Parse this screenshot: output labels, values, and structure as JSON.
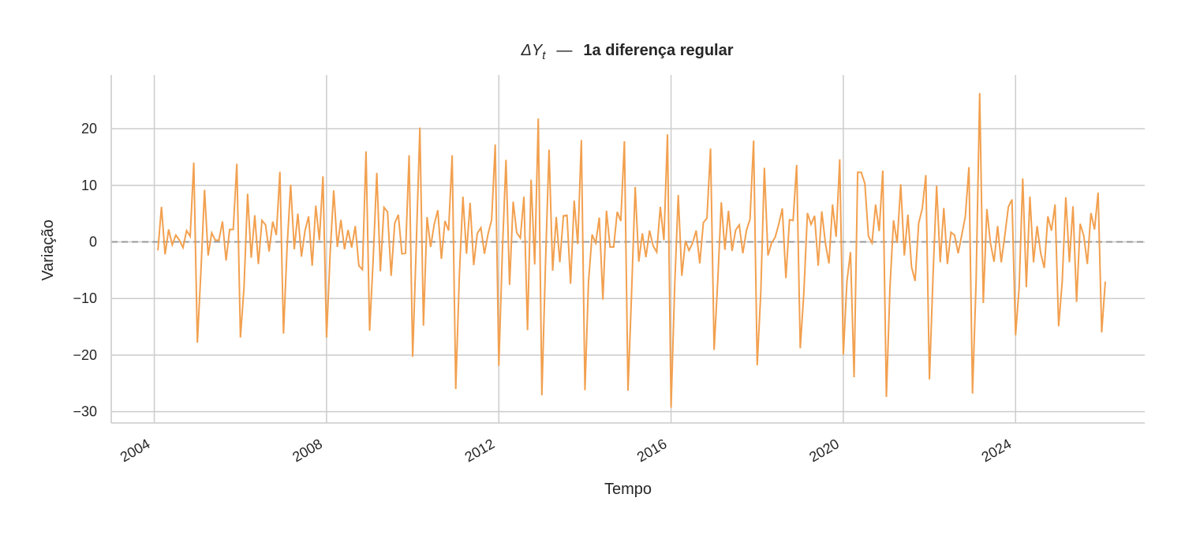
{
  "chart_data": {
    "type": "line",
    "title": {
      "symbol": "ΔY",
      "subscript": "t",
      "separator": "—",
      "text": "1a diferença regular"
    },
    "xlabel": "Tempo",
    "ylabel": "Variação",
    "x_ticks": [
      "2004",
      "2008",
      "2012",
      "2016",
      "2020",
      "2024"
    ],
    "y_ticks": [
      "−30",
      "−20",
      "−10",
      "0",
      "10",
      "20"
    ],
    "x_start": "2004-02",
    "x_end": "2026-02",
    "frequency": "monthly",
    "xlim": [
      "2003-01",
      "2027-01"
    ],
    "ylim": [
      -32,
      29.5
    ],
    "grid": true,
    "reference_line": 0,
    "series": [
      {
        "color": "#f2a04f",
        "values": [
          -1.5,
          6.2,
          -2.2,
          2.2,
          -0.5,
          1.2,
          0.3,
          -1.0,
          2.0,
          1.0,
          14.0,
          -17.8,
          -5.0,
          9.2,
          -2.4,
          1.6,
          0.3,
          0.3,
          3.6,
          -3.3,
          2.2,
          2.2,
          13.8,
          -16.9,
          -8.0,
          8.5,
          -2.8,
          4.7,
          -3.9,
          3.8,
          3.0,
          -1.7,
          3.6,
          1.2,
          12.4,
          -16.2,
          -1.0,
          10.1,
          -1.3,
          5.0,
          -2.6,
          2.0,
          4.5,
          -4.2,
          6.4,
          0.3,
          11.6,
          -16.9,
          -2.0,
          9.1,
          -0.9,
          3.9,
          -1.3,
          2.1,
          -1.0,
          2.8,
          -4.2,
          -4.9,
          16.0,
          -15.7,
          -3.0,
          12.2,
          -5.2,
          6.1,
          5.3,
          -6.0,
          3.3,
          4.8,
          -2.1,
          -2.0,
          15.3,
          -20.3,
          -0.5,
          20.2,
          -14.8,
          4.4,
          -0.9,
          3.1,
          5.6,
          -3.0,
          3.7,
          2.0,
          15.3,
          -26.0,
          -6.0,
          8.0,
          -2.1,
          6.9,
          -4.1,
          1.5,
          2.5,
          -2.1,
          1.4,
          3.9,
          17.2,
          -21.9,
          -1.5,
          14.5,
          -7.6,
          7.1,
          1.6,
          0.7,
          8.0,
          -15.6,
          11.0,
          -4.0,
          21.8,
          -27.1,
          -4.0,
          16.3,
          -5.1,
          4.4,
          -3.6,
          4.6,
          4.7,
          -7.4,
          7.3,
          -0.4,
          18.0,
          -26.2,
          -7.0,
          1.3,
          -0.2,
          4.3,
          -10.2,
          5.5,
          -0.9,
          -0.9,
          5.3,
          3.7,
          17.8,
          -26.3,
          -9.0,
          9.7,
          -3.5,
          1.5,
          -2.7,
          2.0,
          -0.7,
          -1.8,
          6.2,
          0.3,
          19.0,
          -29.3,
          -8.0,
          8.3,
          -6.0,
          0.2,
          -1.5,
          -0.2,
          2.0,
          -3.8,
          3.4,
          4.2,
          16.5,
          -19.1,
          -7.0,
          7.0,
          -1.4,
          5.5,
          -1.6,
          2.1,
          3.0,
          -2.0,
          2.0,
          4.0,
          17.9,
          -21.8,
          -9.0,
          13.1,
          -2.4,
          -0.2,
          0.8,
          3.1,
          5.9,
          -6.4,
          3.9,
          3.8,
          13.6,
          -18.8,
          -9.0,
          5.1,
          3.1,
          4.6,
          -4.2,
          5.4,
          -0.2,
          -3.8,
          6.6,
          0.9,
          14.6,
          -19.9,
          -7.0,
          -1.8,
          -23.9,
          12.3,
          12.3,
          10.3,
          1.0,
          -0.2,
          6.6,
          1.9,
          12.6,
          -27.4,
          -8.0,
          3.8,
          -0.2,
          10.2,
          -2.4,
          4.8,
          -4.4,
          -6.9,
          3.3,
          5.9,
          11.8,
          -24.3,
          -6.0,
          9.9,
          -3.6,
          6.0,
          -3.9,
          1.7,
          1.2,
          -2.0,
          1.2,
          4.5,
          13.2,
          -26.8,
          -7.0,
          26.3,
          -10.8,
          5.8,
          -0.2,
          -3.5,
          2.8,
          -3.6,
          1.1,
          6.2,
          7.5,
          -16.5,
          -8.0,
          11.2,
          -8.0,
          8.0,
          -3.6,
          2.8,
          -2.0,
          -4.6,
          4.5,
          2.0,
          6.6,
          -14.9,
          -7.0,
          7.9,
          -3.6,
          6.3,
          -10.6,
          3.2,
          1.1,
          -3.9,
          5.1,
          2.2,
          8.7,
          -16.0,
          -7.0
        ]
      }
    ]
  }
}
